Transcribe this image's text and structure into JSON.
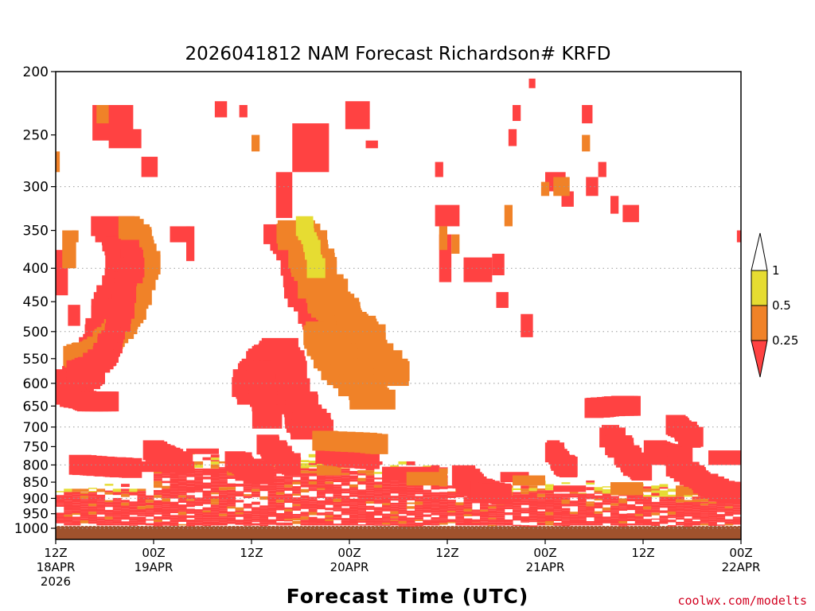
{
  "chart_data": {
    "type": "heatmap",
    "title": "2026041812 NAM Forecast Richardson# KRFD",
    "xlabel": "Forecast Time (UTC)",
    "ylabel": "",
    "credit": "coolwx.com/modelts",
    "x_hours": [
      0,
      84
    ],
    "x_ticks": [
      {
        "hour": 0,
        "lines": [
          "12Z",
          "18APR",
          "2026"
        ]
      },
      {
        "hour": 12,
        "lines": [
          "00Z",
          "19APR"
        ]
      },
      {
        "hour": 24,
        "lines": [
          "12Z"
        ]
      },
      {
        "hour": 36,
        "lines": [
          "00Z",
          "20APR"
        ]
      },
      {
        "hour": 48,
        "lines": [
          "12Z"
        ]
      },
      {
        "hour": 60,
        "lines": [
          "00Z",
          "21APR"
        ]
      },
      {
        "hour": 72,
        "lines": [
          "12Z"
        ]
      },
      {
        "hour": 84,
        "lines": [
          "00Z",
          "22APR"
        ]
      }
    ],
    "y_axis": {
      "scale": "log-pressure",
      "range_hpa": [
        200,
        1040
      ],
      "inverted": true
    },
    "y_ticks": [
      200,
      250,
      300,
      350,
      400,
      450,
      500,
      550,
      600,
      650,
      700,
      750,
      800,
      850,
      900,
      950,
      1000
    ],
    "grid_levels": [
      300,
      400,
      500,
      600,
      700,
      800,
      900,
      1000
    ],
    "surface_hpa": 992,
    "colorbar": {
      "labels": [
        "1",
        "0.5",
        "0.25"
      ],
      "colors": {
        "lt_0_25": "#ff4242",
        "0_25_to_0_5": "#f08228",
        "0_5_to_1": "#e6dc32",
        "surface": "#a0522d"
      }
    },
    "regions": [
      {
        "cat": 3,
        "t0": 4.5,
        "t1": 9.5,
        "p0": 225,
        "p1": 255
      },
      {
        "cat": 3,
        "t0": 6.5,
        "t1": 10.5,
        "p0": 245,
        "p1": 262
      },
      {
        "cat": 3,
        "t0": 10.5,
        "t1": 12.5,
        "p0": 270,
        "p1": 290
      },
      {
        "cat": 3,
        "t0": 19.5,
        "t1": 21,
        "p0": 222,
        "p1": 235
      },
      {
        "cat": 3,
        "t0": 22.5,
        "t1": 23.5,
        "p0": 225,
        "p1": 235
      },
      {
        "cat": 3,
        "t0": 29,
        "t1": 33.5,
        "p0": 240,
        "p1": 285
      },
      {
        "cat": 3,
        "t0": 27,
        "t1": 29,
        "p0": 285,
        "p1": 335
      },
      {
        "cat": 3,
        "t0": 35.5,
        "t1": 38.5,
        "p0": 222,
        "p1": 245
      },
      {
        "cat": 3,
        "t0": 38,
        "t1": 39.5,
        "p0": 255,
        "p1": 262
      },
      {
        "cat": 3,
        "t0": 46.5,
        "t1": 47.5,
        "p0": 275,
        "p1": 290
      },
      {
        "cat": 3,
        "t0": 46.5,
        "t1": 49.5,
        "p0": 320,
        "p1": 345
      },
      {
        "cat": 3,
        "t0": 47,
        "t1": 48.5,
        "p0": 355,
        "p1": 420
      },
      {
        "cat": 3,
        "t0": 50,
        "t1": 53.5,
        "p0": 385,
        "p1": 420
      },
      {
        "cat": 3,
        "t0": 53.5,
        "t1": 55,
        "p0": 380,
        "p1": 410
      },
      {
        "cat": 3,
        "t0": 55.5,
        "t1": 56.5,
        "p0": 245,
        "p1": 260
      },
      {
        "cat": 3,
        "t0": 56,
        "t1": 57,
        "p0": 225,
        "p1": 238
      },
      {
        "cat": 3,
        "t0": 58,
        "t1": 58.8,
        "p0": 205,
        "p1": 212
      },
      {
        "cat": 3,
        "t0": 60,
        "t1": 62.5,
        "p0": 285,
        "p1": 305
      },
      {
        "cat": 3,
        "t0": 62,
        "t1": 63.5,
        "p0": 305,
        "p1": 322
      },
      {
        "cat": 3,
        "t0": 64.5,
        "t1": 65.8,
        "p0": 225,
        "p1": 240
      },
      {
        "cat": 3,
        "t0": 65,
        "t1": 66.5,
        "p0": 290,
        "p1": 310
      },
      {
        "cat": 3,
        "t0": 66.5,
        "t1": 67.5,
        "p0": 275,
        "p1": 290
      },
      {
        "cat": 3,
        "t0": 68,
        "t1": 69,
        "p0": 310,
        "p1": 330
      },
      {
        "cat": 3,
        "t0": 69.5,
        "t1": 71.5,
        "p0": 320,
        "p1": 340
      },
      {
        "cat": 3,
        "t0": 57,
        "t1": 58.5,
        "p0": 470,
        "p1": 510
      },
      {
        "cat": 3,
        "t0": 0,
        "t1": 1.5,
        "p0": 375,
        "p1": 440
      },
      {
        "cat": 3,
        "t0": 1.5,
        "t1": 3,
        "p0": 455,
        "p1": 490
      },
      {
        "cat": 3,
        "t0": 6.5,
        "t1": 7.5,
        "p0": 378,
        "p1": 395
      },
      {
        "cat": 3,
        "t0": 16,
        "t1": 17,
        "p0": 345,
        "p1": 390
      },
      {
        "cat": 3,
        "t0": 14,
        "t1": 16.5,
        "p0": 345,
        "p1": 365
      },
      {
        "cat": 3,
        "t0": 83.5,
        "t1": 84,
        "p0": 350,
        "p1": 365
      },
      {
        "cat": 3,
        "t0": 54,
        "t1": 55.5,
        "p0": 435,
        "p1": 460
      },
      {
        "cat": 2,
        "t0": 5,
        "t1": 6.5,
        "p0": 225,
        "p1": 240
      },
      {
        "cat": 2,
        "t0": 24,
        "t1": 25,
        "p0": 250,
        "p1": 265
      },
      {
        "cat": 2,
        "t0": 0,
        "t1": 0.5,
        "p0": 265,
        "p1": 285
      },
      {
        "cat": 2,
        "t0": 0.8,
        "t1": 2.5,
        "p0": 350,
        "p1": 400
      },
      {
        "cat": 2,
        "t0": 2,
        "t1": 2.8,
        "p0": 350,
        "p1": 365
      },
      {
        "cat": 2,
        "t0": 61,
        "t1": 63,
        "p0": 290,
        "p1": 310
      },
      {
        "cat": 2,
        "t0": 64.5,
        "t1": 65.5,
        "p0": 250,
        "p1": 265
      },
      {
        "cat": 2,
        "t0": 47,
        "t1": 48,
        "p0": 345,
        "p1": 375
      },
      {
        "cat": 2,
        "t0": 48.5,
        "t1": 49.5,
        "p0": 355,
        "p1": 380
      },
      {
        "cat": 2,
        "t0": 59.5,
        "t1": 60.5,
        "p0": 295,
        "p1": 310
      },
      {
        "cat": 2,
        "t0": 55,
        "t1": 56,
        "p0": 320,
        "p1": 345
      },
      {
        "cat": 3,
        "t0": 18,
        "t1": 20,
        "p0": 815,
        "p1": 830
      },
      {
        "cat": 3,
        "t0": 22,
        "t1": 24,
        "p0": 825,
        "p1": 840
      },
      {
        "cat": 3,
        "t0": 40,
        "t1": 47,
        "p0": 805,
        "p1": 845
      },
      {
        "cat": 3,
        "t0": 54.5,
        "t1": 58,
        "p0": 820,
        "p1": 850
      },
      {
        "cat": 3,
        "t0": 61,
        "t1": 65,
        "p0": 860,
        "p1": 880
      },
      {
        "cat": 3,
        "t0": 73,
        "t1": 76,
        "p0": 780,
        "p1": 800
      },
      {
        "cat": 3,
        "t0": 80,
        "t1": 84,
        "p0": 760,
        "p1": 800
      },
      {
        "cat": 3,
        "t0": 8,
        "t1": 17,
        "p0": 790,
        "p1": 820
      },
      {
        "cat": 3,
        "t0": 16,
        "t1": 20,
        "p0": 755,
        "p1": 770
      },
      {
        "cat": 2,
        "t0": 21,
        "t1": 25,
        "p0": 790,
        "p1": 830
      },
      {
        "cat": 2,
        "t0": 32,
        "t1": 35,
        "p0": 800,
        "p1": 830
      },
      {
        "cat": 2,
        "t0": 43,
        "t1": 48,
        "p0": 820,
        "p1": 860
      },
      {
        "cat": 2,
        "t0": 56,
        "t1": 60,
        "p0": 830,
        "p1": 860
      },
      {
        "cat": 2,
        "t0": 68,
        "t1": 72,
        "p0": 850,
        "p1": 890
      },
      {
        "cat": 2,
        "t0": 76,
        "t1": 80,
        "p0": 860,
        "p1": 890
      }
    ],
    "streaks": [
      {
        "cat": 3,
        "pts": [
          [
            7,
            345
          ],
          [
            8,
            368
          ],
          [
            9,
            372
          ],
          [
            8.5,
            410
          ],
          [
            7.5,
            440
          ],
          [
            6,
            505
          ],
          [
            5,
            540
          ],
          [
            4,
            575
          ],
          [
            2.5,
            595
          ],
          [
            1.5,
            615
          ],
          [
            0.5,
            625
          ],
          [
            0,
            620
          ]
        ],
        "w": 4.2
      },
      {
        "cat": 2,
        "pts": [
          [
            9,
            345
          ],
          [
            10.5,
            365
          ],
          [
            11,
            395
          ],
          [
            10,
            440
          ],
          [
            9,
            475
          ],
          [
            7.5,
            500
          ],
          [
            6,
            520
          ],
          [
            5,
            535
          ],
          [
            3.5,
            540
          ],
          [
            2,
            550
          ]
        ],
        "w": 3.0
      },
      {
        "cat": 3,
        "pts": [
          [
            9,
            375
          ],
          [
            9.5,
            395
          ],
          [
            8.5,
            420
          ],
          [
            8,
            470
          ],
          [
            7,
            510
          ],
          [
            6,
            545
          ],
          [
            4.5,
            565
          ],
          [
            2.5,
            575
          ]
        ],
        "w": 2.6
      },
      {
        "cat": 3,
        "pts": [
          [
            24.5,
            625
          ],
          [
            24,
            600
          ],
          [
            25,
            575
          ],
          [
            26.5,
            545
          ],
          [
            27.5,
            530
          ],
          [
            28,
            565
          ],
          [
            29,
            620
          ],
          [
            30,
            660
          ],
          [
            31,
            690
          ],
          [
            31.5,
            710
          ]
        ],
        "w": 4.2
      },
      {
        "cat": 3,
        "pts": [
          [
            28,
            355
          ],
          [
            29.5,
            380
          ],
          [
            30.5,
            430
          ],
          [
            32,
            470
          ],
          [
            34,
            500
          ],
          [
            36,
            520
          ],
          [
            37,
            545
          ]
        ],
        "w": 4.0
      },
      {
        "cat": 2,
        "pts": [
          [
            29.5,
            350
          ],
          [
            31,
            375
          ],
          [
            32,
            410
          ],
          [
            33.5,
            450
          ],
          [
            35,
            470
          ],
          [
            36.5,
            490
          ],
          [
            38,
            520
          ],
          [
            40,
            560
          ],
          [
            41,
            590
          ]
        ],
        "w": 5.0
      },
      {
        "cat": 2,
        "pts": [
          [
            32.5,
            500
          ],
          [
            34,
            540
          ],
          [
            35,
            570
          ],
          [
            36.5,
            590
          ],
          [
            38,
            615
          ],
          [
            39,
            640
          ]
        ],
        "w": 4.5
      },
      {
        "cat": 3,
        "pts": [
          [
            25,
            575
          ],
          [
            25.5,
            630
          ],
          [
            26,
            690
          ]
        ],
        "w": 3.0
      },
      {
        "cat": 1,
        "pts": [
          [
            30.5,
            345
          ],
          [
            31.5,
            375
          ],
          [
            32,
            405
          ]
        ],
        "w": 1.8
      },
      {
        "cat": 3,
        "pts": [
          [
            2,
            630
          ],
          [
            4,
            640
          ],
          [
            7,
            640
          ]
        ],
        "w": 2.5
      },
      {
        "cat": 3,
        "pts": [
          [
            66,
            655
          ],
          [
            69,
            650
          ],
          [
            70.5,
            650
          ]
        ],
        "w": 2.4
      },
      {
        "cat": 3,
        "pts": [
          [
            68,
            720
          ],
          [
            69.5,
            760
          ],
          [
            71,
            800
          ],
          [
            72,
            820
          ]
        ],
        "w": 2.6
      },
      {
        "cat": 3,
        "pts": [
          [
            73.5,
            760
          ],
          [
            75,
            770
          ],
          [
            77,
            780
          ]
        ],
        "w": 2.4
      },
      {
        "cat": 3,
        "pts": [
          [
            76,
            695
          ],
          [
            77.5,
            715
          ],
          [
            78,
            730
          ]
        ],
        "w": 2.4
      },
      {
        "cat": 3,
        "pts": [
          [
            61,
            760
          ],
          [
            62,
            795
          ],
          [
            63,
            810
          ]
        ],
        "w": 2.2
      },
      {
        "cat": 3,
        "pts": [
          [
            76,
            800
          ],
          [
            78,
            830
          ],
          [
            80,
            860
          ],
          [
            82,
            880
          ],
          [
            84,
            880
          ]
        ],
        "w": 2.6
      },
      {
        "cat": 3,
        "pts": [
          [
            50,
            830
          ],
          [
            51,
            860
          ],
          [
            53,
            880
          ],
          [
            55,
            890
          ]
        ],
        "w": 2.8
      },
      {
        "cat": 3,
        "pts": [
          [
            26,
            745
          ],
          [
            27.5,
            775
          ],
          [
            29,
            805
          ]
        ],
        "w": 2.4
      },
      {
        "cat": 3,
        "pts": [
          [
            33,
            770
          ],
          [
            36,
            780
          ],
          [
            39,
            785
          ]
        ],
        "w": 2.4
      },
      {
        "cat": 2,
        "pts": [
          [
            33,
            735
          ],
          [
            38,
            740
          ],
          [
            40,
            745
          ]
        ],
        "w": 2.4
      },
      {
        "cat": 3,
        "pts": [
          [
            22,
            790
          ],
          [
            24,
            815
          ],
          [
            26,
            830
          ]
        ],
        "w": 2.4
      },
      {
        "cat": 3,
        "pts": [
          [
            12,
            760
          ],
          [
            14,
            780
          ],
          [
            16,
            800
          ]
        ],
        "w": 2.4
      },
      {
        "cat": 3,
        "pts": [
          [
            3,
            800
          ],
          [
            6,
            805
          ],
          [
            10,
            810
          ]
        ],
        "w": 2.4
      }
    ],
    "bands": [
      {
        "t0": 0,
        "t1": 12,
        "pa": [
          {
            "p": 855,
            "c": 0
          },
          {
            "p": 870,
            "c": 1
          },
          {
            "p": 880,
            "c": 3
          },
          {
            "p": 960,
            "c": 3
          },
          {
            "p": 990,
            "c": 3
          }
        ]
      },
      {
        "t0": 12,
        "t1": 24,
        "pa": [
          {
            "p": 765,
            "c": 0
          },
          {
            "p": 790,
            "c": 1
          },
          {
            "p": 810,
            "c": 3
          },
          {
            "p": 970,
            "c": 3
          },
          {
            "p": 990,
            "c": 3
          }
        ]
      },
      {
        "t0": 24,
        "t1": 36,
        "pa": [
          {
            "p": 770,
            "c": 0
          },
          {
            "p": 795,
            "c": 1
          },
          {
            "p": 810,
            "c": 3
          },
          {
            "p": 975,
            "c": 3
          },
          {
            "p": 990,
            "c": 3
          }
        ]
      },
      {
        "t0": 36,
        "t1": 48,
        "pa": [
          {
            "p": 790,
            "c": 0
          },
          {
            "p": 810,
            "c": 1
          },
          {
            "p": 830,
            "c": 3
          },
          {
            "p": 975,
            "c": 3
          },
          {
            "p": 990,
            "c": 3
          }
        ]
      },
      {
        "t0": 48,
        "t1": 60,
        "pa": [
          {
            "p": 840,
            "c": 0
          },
          {
            "p": 860,
            "c": 1
          },
          {
            "p": 880,
            "c": 3
          },
          {
            "p": 980,
            "c": 3
          },
          {
            "p": 990,
            "c": 3
          }
        ]
      },
      {
        "t0": 60,
        "t1": 72,
        "pa": [
          {
            "p": 845,
            "c": 0
          },
          {
            "p": 865,
            "c": 1
          },
          {
            "p": 885,
            "c": 3
          },
          {
            "p": 975,
            "c": 3
          },
          {
            "p": 990,
            "c": 3
          }
        ]
      },
      {
        "t0": 72,
        "t1": 84,
        "pa": [
          {
            "p": 850,
            "c": 0
          },
          {
            "p": 870,
            "c": 1
          },
          {
            "p": 895,
            "c": 3
          },
          {
            "p": 970,
            "c": 3
          },
          {
            "p": 990,
            "c": 3
          }
        ]
      }
    ]
  }
}
